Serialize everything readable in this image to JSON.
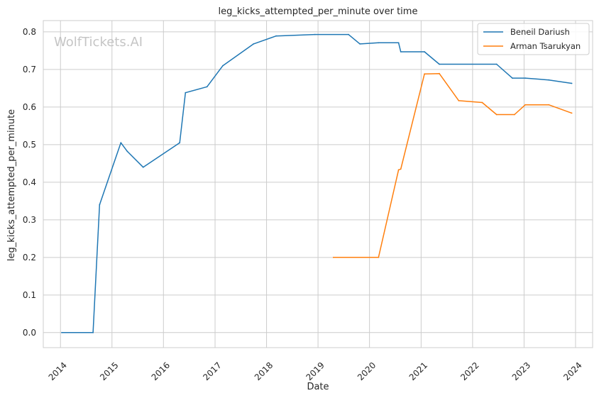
{
  "chart_data": {
    "type": "line",
    "title": "leg_kicks_attempted_per_minute over time",
    "xlabel": "Date",
    "ylabel": "leg_kicks_attempted_per_minute",
    "watermark": "WolfTickets.AI",
    "xlim": [
      "2013-09-01",
      "2024-05-01"
    ],
    "ylim": [
      -0.04,
      0.83
    ],
    "x_ticks": [
      "2014",
      "2015",
      "2016",
      "2017",
      "2018",
      "2019",
      "2020",
      "2021",
      "2022",
      "2023",
      "2024"
    ],
    "y_ticks": [
      0.0,
      0.1,
      0.2,
      0.3,
      0.4,
      0.5,
      0.6,
      0.7,
      0.8
    ],
    "grid": true,
    "legend_position": "top-right",
    "colors": {
      "grid": "#cccccc",
      "axes": "#cccccc",
      "text": "#262626",
      "watermark": "#bbbbbb"
    },
    "series": [
      {
        "name": "Beneil Dariush",
        "color": "#1f77b4",
        "points": [
          [
            "2014-01-10",
            0.0
          ],
          [
            "2014-08-20",
            0.0
          ],
          [
            "2014-10-05",
            0.34
          ],
          [
            "2015-03-05",
            0.505
          ],
          [
            "2015-04-20",
            0.482
          ],
          [
            "2015-08-10",
            0.44
          ],
          [
            "2016-04-25",
            0.505
          ],
          [
            "2016-06-05",
            0.638
          ],
          [
            "2016-11-05",
            0.654
          ],
          [
            "2017-02-25",
            0.71
          ],
          [
            "2017-10-01",
            0.768
          ],
          [
            "2018-03-10",
            0.789
          ],
          [
            "2018-12-10",
            0.793
          ],
          [
            "2019-08-05",
            0.793
          ],
          [
            "2019-10-25",
            0.768
          ],
          [
            "2020-03-05",
            0.771
          ],
          [
            "2020-07-25",
            0.771
          ],
          [
            "2020-08-10",
            0.747
          ],
          [
            "2021-01-25",
            0.747
          ],
          [
            "2021-05-10",
            0.714
          ],
          [
            "2022-06-20",
            0.714
          ],
          [
            "2022-10-10",
            0.677
          ],
          [
            "2023-01-10",
            0.677
          ],
          [
            "2023-06-25",
            0.672
          ],
          [
            "2023-12-05",
            0.663
          ]
        ]
      },
      {
        "name": "Arman Tsarukyan",
        "color": "#ff7f0e",
        "points": [
          [
            "2019-04-20",
            0.2
          ],
          [
            "2020-03-05",
            0.2
          ],
          [
            "2020-07-25",
            0.433
          ],
          [
            "2020-08-10",
            0.435
          ],
          [
            "2021-01-25",
            0.688
          ],
          [
            "2021-05-10",
            0.689
          ],
          [
            "2021-09-25",
            0.617
          ],
          [
            "2022-03-10",
            0.612
          ],
          [
            "2022-06-20",
            0.58
          ],
          [
            "2022-10-25",
            0.58
          ],
          [
            "2023-01-10",
            0.606
          ],
          [
            "2023-06-25",
            0.606
          ],
          [
            "2023-12-05",
            0.584
          ]
        ]
      }
    ]
  }
}
